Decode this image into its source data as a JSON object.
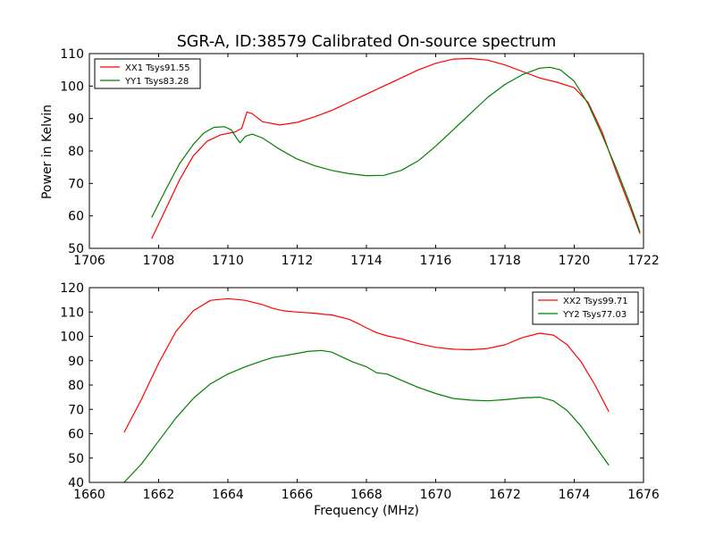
{
  "figure": {
    "title": "SGR-A, ID:38579 Calibrated On-source spectrum",
    "ylabel": "Power in Kelvin",
    "xlabel": "Frequency (MHz)"
  },
  "chart_data": [
    {
      "type": "line",
      "xlim": [
        1706,
        1722
      ],
      "ylim": [
        50,
        110
      ],
      "xticks": [
        1706,
        1708,
        1710,
        1712,
        1714,
        1716,
        1718,
        1720,
        1722
      ],
      "yticks": [
        50,
        60,
        70,
        80,
        90,
        100,
        110
      ],
      "legend_position": "top-left",
      "grid": false,
      "series": [
        {
          "name": "XX1 Tsys91.55",
          "color": "#ff0000",
          "points": [
            [
              1707.8,
              53.0
            ],
            [
              1708.2,
              62.0
            ],
            [
              1708.6,
              71.0
            ],
            [
              1709.0,
              78.5
            ],
            [
              1709.4,
              83.0
            ],
            [
              1709.8,
              85.0
            ],
            [
              1710.2,
              85.8
            ],
            [
              1710.4,
              87.0
            ],
            [
              1710.55,
              92.0
            ],
            [
              1710.7,
              91.5
            ],
            [
              1711.0,
              89.0
            ],
            [
              1711.5,
              88.0
            ],
            [
              1712.0,
              88.8
            ],
            [
              1712.5,
              90.5
            ],
            [
              1713.0,
              92.5
            ],
            [
              1713.5,
              95.0
            ],
            [
              1714.0,
              97.5
            ],
            [
              1714.5,
              100.0
            ],
            [
              1715.0,
              102.5
            ],
            [
              1715.5,
              105.0
            ],
            [
              1716.0,
              107.0
            ],
            [
              1716.5,
              108.3
            ],
            [
              1717.0,
              108.5
            ],
            [
              1717.5,
              108.0
            ],
            [
              1718.0,
              106.5
            ],
            [
              1718.5,
              104.5
            ],
            [
              1719.0,
              102.5
            ],
            [
              1719.5,
              101.2
            ],
            [
              1720.0,
              99.5
            ],
            [
              1720.4,
              95.0
            ],
            [
              1720.8,
              86.0
            ],
            [
              1721.2,
              74.0
            ],
            [
              1721.6,
              63.0
            ],
            [
              1721.9,
              54.5
            ]
          ]
        },
        {
          "name": "YY1 Tsys83.28",
          "color": "#008000",
          "points": [
            [
              1707.8,
              59.5
            ],
            [
              1708.2,
              68.0
            ],
            [
              1708.6,
              76.0
            ],
            [
              1709.0,
              82.0
            ],
            [
              1709.3,
              85.5
            ],
            [
              1709.6,
              87.3
            ],
            [
              1709.9,
              87.5
            ],
            [
              1710.1,
              86.5
            ],
            [
              1710.25,
              84.0
            ],
            [
              1710.35,
              82.5
            ],
            [
              1710.5,
              84.5
            ],
            [
              1710.7,
              85.2
            ],
            [
              1711.0,
              84.0
            ],
            [
              1711.5,
              80.5
            ],
            [
              1712.0,
              77.5
            ],
            [
              1712.5,
              75.5
            ],
            [
              1713.0,
              74.0
            ],
            [
              1713.5,
              73.0
            ],
            [
              1714.0,
              72.4
            ],
            [
              1714.5,
              72.5
            ],
            [
              1715.0,
              74.0
            ],
            [
              1715.5,
              77.0
            ],
            [
              1716.0,
              81.5
            ],
            [
              1716.5,
              86.5
            ],
            [
              1717.0,
              91.5
            ],
            [
              1717.5,
              96.5
            ],
            [
              1718.0,
              100.5
            ],
            [
              1718.5,
              103.5
            ],
            [
              1719.0,
              105.5
            ],
            [
              1719.3,
              105.8
            ],
            [
              1719.6,
              105.0
            ],
            [
              1720.0,
              101.5
            ],
            [
              1720.4,
              94.5
            ],
            [
              1720.8,
              85.0
            ],
            [
              1721.2,
              75.0
            ],
            [
              1721.6,
              64.0
            ],
            [
              1721.9,
              55.0
            ]
          ]
        }
      ]
    },
    {
      "type": "line",
      "xlim": [
        1660,
        1676
      ],
      "ylim": [
        40,
        120
      ],
      "xticks": [
        1660,
        1662,
        1664,
        1666,
        1668,
        1670,
        1672,
        1674,
        1676
      ],
      "yticks": [
        40,
        50,
        60,
        70,
        80,
        90,
        100,
        110,
        120
      ],
      "legend_position": "top-right",
      "grid": false,
      "series": [
        {
          "name": "XX2 Tsys99.71",
          "color": "#ff0000",
          "points": [
            [
              1661.0,
              60.5
            ],
            [
              1661.5,
              74.0
            ],
            [
              1662.0,
              89.0
            ],
            [
              1662.5,
              102.0
            ],
            [
              1663.0,
              110.5
            ],
            [
              1663.5,
              114.8
            ],
            [
              1664.0,
              115.5
            ],
            [
              1664.5,
              114.8
            ],
            [
              1665.0,
              113.0
            ],
            [
              1665.3,
              111.5
            ],
            [
              1665.6,
              110.5
            ],
            [
              1666.0,
              110.0
            ],
            [
              1666.5,
              109.5
            ],
            [
              1666.8,
              109.0
            ],
            [
              1667.0,
              108.8
            ],
            [
              1667.5,
              107.0
            ],
            [
              1667.8,
              105.0
            ],
            [
              1668.0,
              103.5
            ],
            [
              1668.3,
              101.5
            ],
            [
              1668.6,
              100.2
            ],
            [
              1669.0,
              99.0
            ],
            [
              1669.5,
              97.0
            ],
            [
              1670.0,
              95.5
            ],
            [
              1670.5,
              94.7
            ],
            [
              1671.0,
              94.5
            ],
            [
              1671.5,
              95.0
            ],
            [
              1672.0,
              96.5
            ],
            [
              1672.5,
              99.5
            ],
            [
              1673.0,
              101.3
            ],
            [
              1673.4,
              100.5
            ],
            [
              1673.8,
              96.5
            ],
            [
              1674.2,
              89.5
            ],
            [
              1674.6,
              80.0
            ],
            [
              1675.0,
              69.0
            ]
          ]
        },
        {
          "name": "YY2 Tsys77.03",
          "color": "#008000",
          "points": [
            [
              1661.0,
              40.0
            ],
            [
              1661.5,
              47.5
            ],
            [
              1662.0,
              57.0
            ],
            [
              1662.5,
              66.5
            ],
            [
              1663.0,
              74.5
            ],
            [
              1663.5,
              80.5
            ],
            [
              1664.0,
              84.5
            ],
            [
              1664.5,
              87.5
            ],
            [
              1665.0,
              90.0
            ],
            [
              1665.3,
              91.3
            ],
            [
              1665.6,
              92.0
            ],
            [
              1666.0,
              93.0
            ],
            [
              1666.3,
              93.8
            ],
            [
              1666.7,
              94.2
            ],
            [
              1667.0,
              93.5
            ],
            [
              1667.3,
              91.5
            ],
            [
              1667.6,
              89.5
            ],
            [
              1668.0,
              87.5
            ],
            [
              1668.3,
              85.0
            ],
            [
              1668.6,
              84.5
            ],
            [
              1669.0,
              82.0
            ],
            [
              1669.5,
              79.0
            ],
            [
              1670.0,
              76.5
            ],
            [
              1670.5,
              74.5
            ],
            [
              1671.0,
              73.8
            ],
            [
              1671.5,
              73.5
            ],
            [
              1672.0,
              74.0
            ],
            [
              1672.5,
              74.7
            ],
            [
              1673.0,
              75.0
            ],
            [
              1673.4,
              73.5
            ],
            [
              1673.8,
              69.5
            ],
            [
              1674.2,
              63.0
            ],
            [
              1674.6,
              55.0
            ],
            [
              1675.0,
              47.0
            ]
          ]
        }
      ]
    }
  ]
}
